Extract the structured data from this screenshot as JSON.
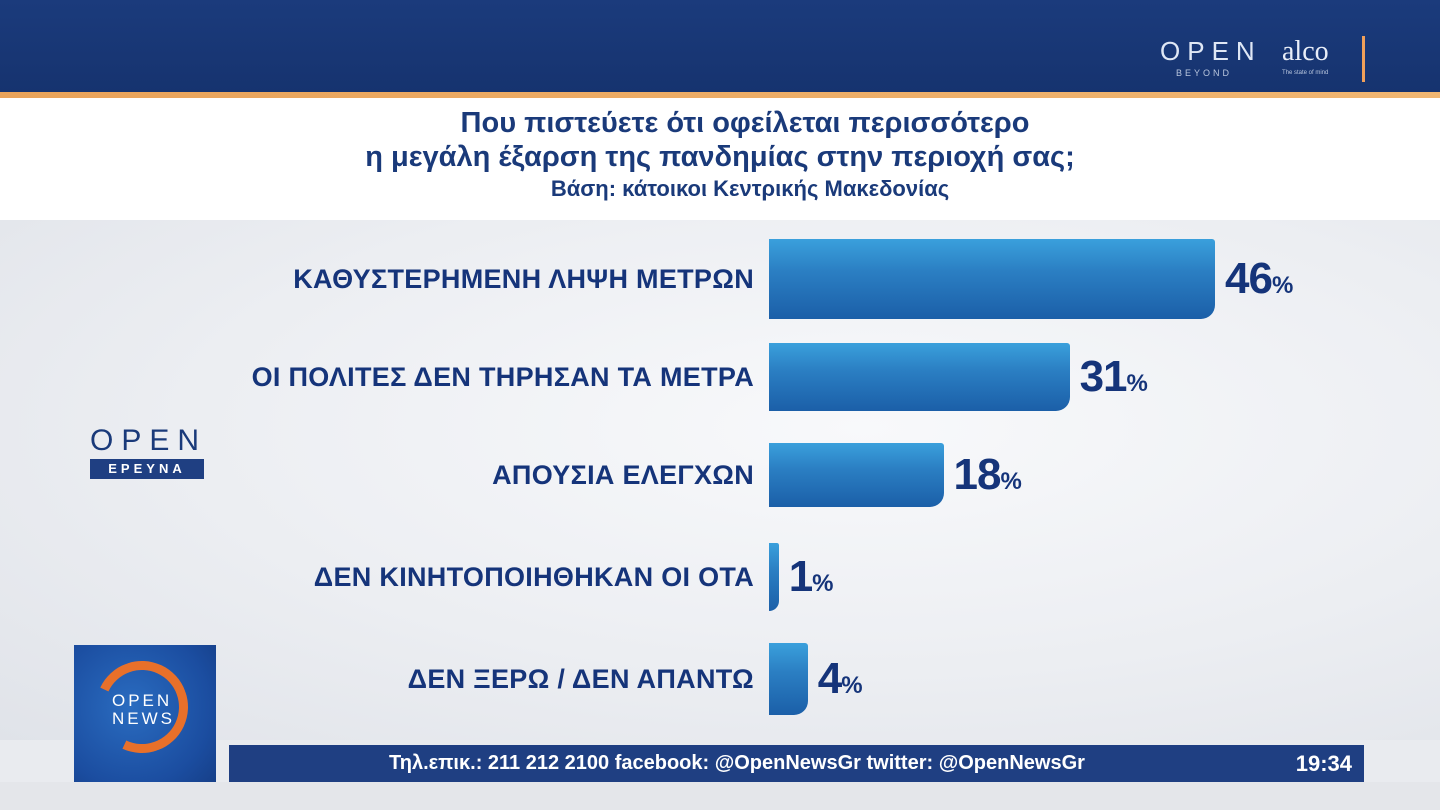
{
  "header": {
    "brand_open": "OPEN",
    "brand_beyond": "BEYOND",
    "brand_alco": "alco",
    "brand_alco_tag": "The state of mind"
  },
  "title": {
    "line1": "Που πιστεύετε ότι οφείλεται περισσότερο",
    "line2": "η μεγάλη έξαρση της πανδημίας στην περιοχή σας;",
    "subtitle": "Βάση: κάτοικοι Κεντρικής Μακεδονίας"
  },
  "logos": {
    "open_erevna_top": "OPEN",
    "open_erevna_bottom": "ΕΡΕΥΝΑ",
    "news_open": "OPEN",
    "news_news": "NEWS"
  },
  "ticker": {
    "text": "Τηλ.επικ.: 211 212 2100 facebook: @OpenNewsGr twitter: @OpenNewsGr",
    "time": "19:34"
  },
  "colors": {
    "navy": "#1b3b7c",
    "bar_blue": "#2b7fc3",
    "text_blue": "#15347a",
    "accent_orange": "#e8702a"
  },
  "chart_data": {
    "type": "bar",
    "orientation": "horizontal",
    "title": "Που πιστεύετε ότι οφείλεται περισσότερο η μεγάλη έξαρση της πανδημίας στην περιοχή σας;",
    "subtitle": "Βάση: κάτοικοι Κεντρικής Μακεδονίας",
    "unit": "%",
    "xlim": [
      0,
      50
    ],
    "grid": false,
    "categories": [
      "ΚΑΘΥΣΤΕΡΗΜΕΝΗ ΛΗΨΗ ΜΕΤΡΩΝ",
      "ΟΙ ΠΟΛΙΤΕΣ ΔΕΝ ΤΗΡΗΣΑΝ ΤΑ ΜΕΤΡΑ",
      "ΑΠΟΥΣΙΑ ΕΛΕΓΧΩΝ",
      "ΔΕΝ ΚΙΝΗΤΟΠΟΙΗΘΗΚΑΝ ΟΙ ΟΤΑ",
      "ΔΕΝ ΞΕΡΩ / ΔΕΝ ΑΠΑΝΤΩ"
    ],
    "values": [
      46,
      31,
      18,
      1,
      4
    ]
  }
}
